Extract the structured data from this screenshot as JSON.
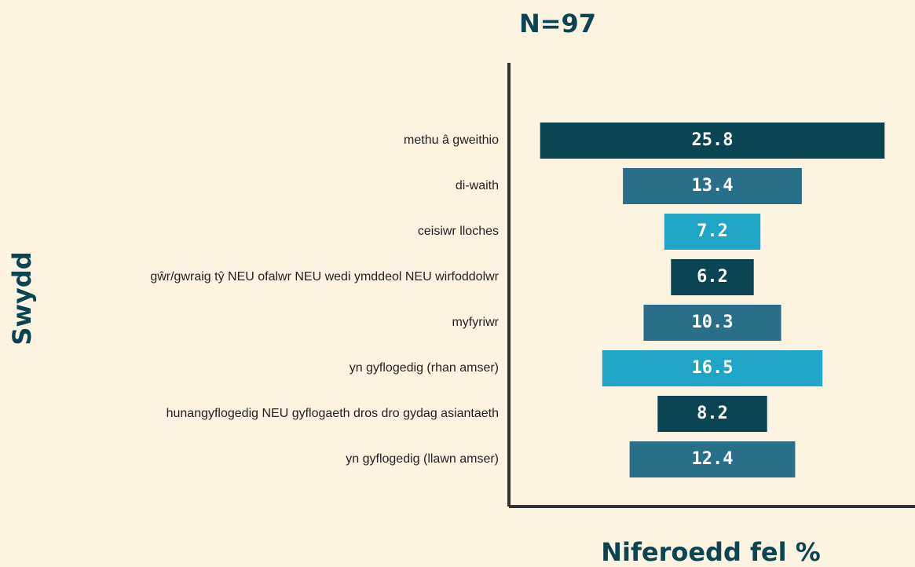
{
  "chart_data": {
    "type": "funnel",
    "title": "N=97",
    "ylabel": "Swydd",
    "xlabel": "Niferoedd fel %",
    "categories": [
      "methu â gweithio",
      "di-waith",
      "ceisiwr  lloches",
      "gŵr/gwraig tŷ NEU ofalwr NEU wedi ymddeol NEU wirfoddolwr",
      "myfyriwr",
      "yn gyflogedig (rhan amser)",
      "hunangyflogedig NEU gyflogaeth dros dro gydag asiantaeth",
      "yn gyflogedig (llawn amser)"
    ],
    "values": [
      25.8,
      13.4,
      7.2,
      6.2,
      10.3,
      16.5,
      8.2,
      12.4
    ],
    "colors": [
      "#0b4452",
      "#2a6f8a",
      "#1fa5c8",
      "#0b4452",
      "#2a6f8a",
      "#1fa5c8",
      "#0b4452",
      "#2a6f8a"
    ]
  }
}
